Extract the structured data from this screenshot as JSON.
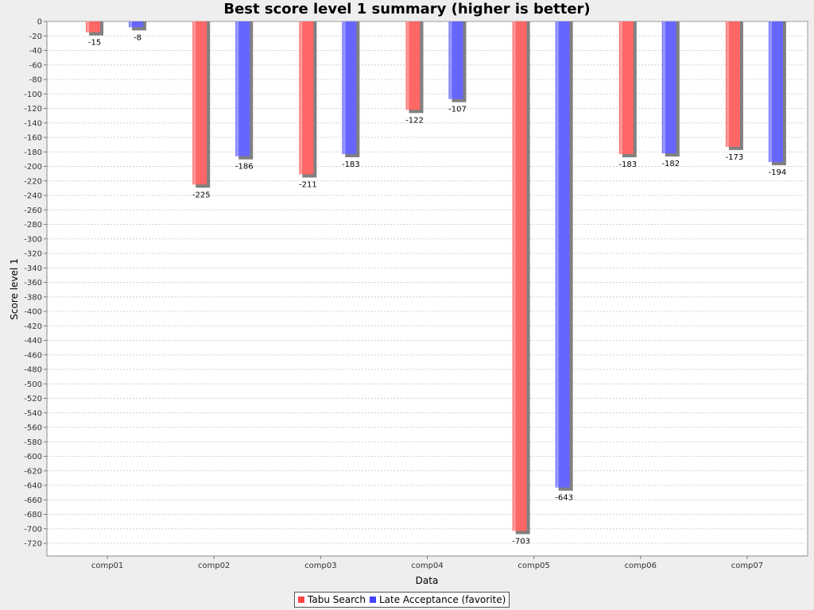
{
  "chart_data": {
    "type": "bar",
    "title": "Best score level 1 summary (higher is better)",
    "xlabel": "Data",
    "ylabel": "Score level 1",
    "categories": [
      "comp01",
      "comp02",
      "comp03",
      "comp04",
      "comp05",
      "comp06",
      "comp07"
    ],
    "series": [
      {
        "name": "Tabu Search",
        "color": "#ff6666",
        "values": [
          -15,
          -225,
          -211,
          -122,
          -703,
          -183,
          -173
        ]
      },
      {
        "name": "Late Acceptance (favorite)",
        "color": "#6666ff",
        "values": [
          -8,
          -186,
          -183,
          -107,
          -643,
          -182,
          -194
        ]
      }
    ],
    "ylim": [
      -730,
      0
    ],
    "ytick_step": 20,
    "grid": true,
    "legend_position": "bottom-center"
  }
}
